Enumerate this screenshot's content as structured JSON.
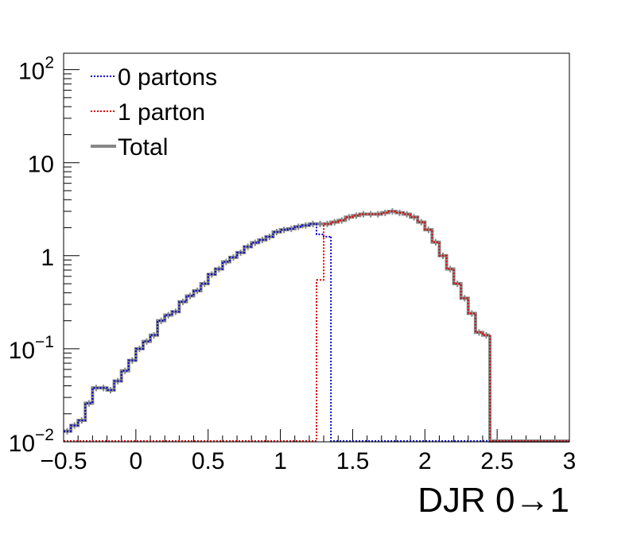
{
  "chart_data": {
    "type": "line",
    "xlabel": "DJR 0→1",
    "xlim": [
      -0.5,
      3.0
    ],
    "ylim": [
      0.01,
      150
    ],
    "yscale": "log",
    "x_ticks": [
      "−0.5",
      "0",
      "0.5",
      "1",
      "1.5",
      "2",
      "2.5",
      "3"
    ],
    "x_tick_values": [
      -0.5,
      0,
      0.5,
      1,
      1.5,
      2,
      2.5,
      3
    ],
    "y_ticks": [
      {
        "value": 0.01,
        "base": "10",
        "exp": "−2"
      },
      {
        "value": 0.1,
        "base": "10",
        "exp": "−1"
      },
      {
        "value": 1,
        "base": "1",
        "exp": ""
      },
      {
        "value": 10,
        "base": "10",
        "exp": ""
      },
      {
        "value": 100,
        "base": "10",
        "exp": "2"
      }
    ],
    "legend_position": "top-left",
    "series": [
      {
        "name": "0 partons",
        "color": "#0000cc",
        "style": "dotted",
        "x_start": -0.5,
        "bin_width": 0.05,
        "values": [
          0.013,
          0.015,
          0.017,
          0.026,
          0.038,
          0.038,
          0.036,
          0.045,
          0.058,
          0.075,
          0.1,
          0.12,
          0.14,
          0.2,
          0.23,
          0.25,
          0.32,
          0.37,
          0.42,
          0.5,
          0.63,
          0.72,
          0.86,
          0.96,
          1.08,
          1.25,
          1.38,
          1.48,
          1.6,
          1.8,
          1.9,
          1.95,
          2.05,
          2.12,
          2.2,
          1.7,
          1.6
        ]
      },
      {
        "name": "1 parton",
        "color": "#dd0000",
        "style": "dotted",
        "x_start": 1.25,
        "bin_width": 0.05,
        "values": [
          0.55,
          2.2,
          2.3,
          2.4,
          2.6,
          2.7,
          2.8,
          2.8,
          2.8,
          2.9,
          3.0,
          2.9,
          2.8,
          2.6,
          2.3,
          1.9,
          1.4,
          1.0,
          0.72,
          0.5,
          0.35,
          0.24,
          0.15,
          0.14
        ]
      },
      {
        "name": "Total",
        "color": "#888888",
        "style": "solid",
        "x_start": -0.5,
        "bin_width": 0.05,
        "values": [
          0.013,
          0.015,
          0.017,
          0.026,
          0.038,
          0.038,
          0.036,
          0.045,
          0.058,
          0.075,
          0.1,
          0.12,
          0.14,
          0.2,
          0.23,
          0.25,
          0.32,
          0.37,
          0.42,
          0.5,
          0.63,
          0.72,
          0.86,
          0.96,
          1.08,
          1.25,
          1.38,
          1.48,
          1.6,
          1.8,
          1.9,
          1.95,
          2.05,
          2.12,
          2.2,
          2.2,
          2.2,
          2.3,
          2.4,
          2.6,
          2.7,
          2.8,
          2.8,
          2.8,
          2.9,
          3.0,
          2.9,
          2.8,
          2.6,
          2.3,
          1.9,
          1.4,
          1.0,
          0.72,
          0.5,
          0.35,
          0.24,
          0.15,
          0.14
        ]
      }
    ]
  }
}
